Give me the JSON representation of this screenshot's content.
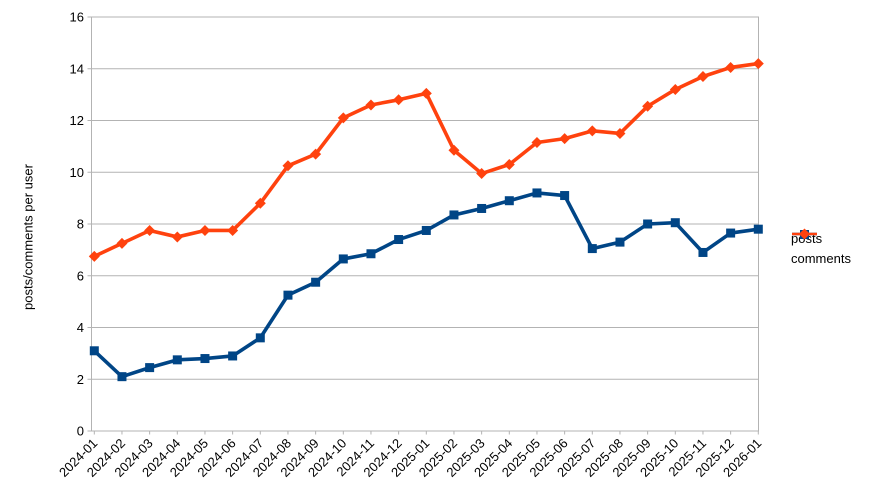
{
  "chart_data": {
    "type": "line",
    "title": "",
    "xlabel": "",
    "ylabel": "posts/comments per user",
    "ylim": [
      0,
      16
    ],
    "ytick_step": 2,
    "grid": true,
    "legend_position": "right",
    "categories": [
      "2024-01",
      "2024-02",
      "2024-03",
      "2024-04",
      "2024-05",
      "2024-06",
      "2024-07",
      "2024-08",
      "2024-09",
      "2024-10",
      "2024-11",
      "2024-12",
      "2025-01",
      "2025-02",
      "2025-03",
      "2025-04",
      "2025-05",
      "2025-06",
      "2025-07",
      "2025-08",
      "2025-09",
      "2025-10",
      "2025-11",
      "2025-12",
      "2026-01"
    ],
    "series": [
      {
        "name": "posts",
        "marker": "square",
        "color": "#004586",
        "values": [
          3.1,
          2.1,
          2.45,
          2.75,
          2.8,
          2.9,
          3.6,
          5.25,
          5.75,
          6.65,
          6.85,
          7.4,
          7.75,
          8.35,
          8.6,
          8.9,
          9.2,
          9.1,
          7.05,
          7.3,
          8.0,
          8.05,
          6.9,
          7.65,
          7.8
        ]
      },
      {
        "name": "comments",
        "marker": "diamond",
        "color": "#FF420E",
        "values": [
          6.75,
          7.25,
          7.75,
          7.5,
          7.75,
          7.75,
          8.8,
          10.25,
          10.7,
          12.1,
          12.6,
          12.8,
          13.05,
          10.85,
          9.95,
          10.3,
          11.15,
          11.3,
          11.6,
          11.5,
          12.55,
          13.2,
          13.7,
          14.05,
          14.2
        ]
      }
    ],
    "ytick_labels": [
      "0",
      "2",
      "4",
      "6",
      "8",
      "10",
      "12",
      "14",
      "16"
    ]
  },
  "colors": {
    "grid": "#b3b3b3",
    "axis": "#b3b3b3",
    "text": "#000000",
    "background": "#ffffff"
  }
}
